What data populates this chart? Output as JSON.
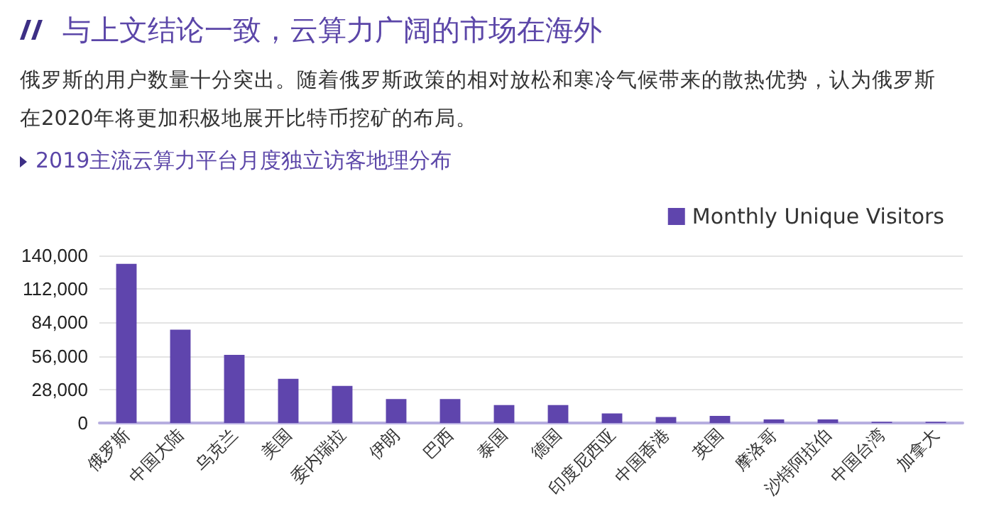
{
  "chart_data": {
    "type": "bar",
    "title": "2019主流云算力平台月度独立访客地理分布",
    "annotations": [
      "与上文结论一致，云算力广阔的市场在海外",
      "俄罗斯的用户数量十分突出。随着俄罗斯政策的相对放松和寒冷气候带来的散热优势，认为俄罗斯在2020年将更加积极地展开比特币挖矿的布局。"
    ],
    "categories": [
      "俄罗斯",
      "中国大陆",
      "乌克兰",
      "美国",
      "委内瑞拉",
      "伊朗",
      "巴西",
      "泰国",
      "德国",
      "印度尼西亚",
      "中国香港",
      "英国",
      "摩洛哥",
      "沙特阿拉伯",
      "中国台湾",
      "加拿大"
    ],
    "series": [
      {
        "name": "Monthly Unique Visitors",
        "color": "#5f45ad",
        "values": [
          133000,
          78000,
          57000,
          37000,
          31000,
          20000,
          20000,
          15000,
          15000,
          8000,
          5000,
          6000,
          3000,
          3000,
          1000,
          1000
        ]
      }
    ],
    "ylim": [
      0,
      140000
    ],
    "yticks": [
      {
        "value": 0,
        "label": "0"
      },
      {
        "value": 28000,
        "label": "28,000"
      },
      {
        "value": 56000,
        "label": "56,000"
      },
      {
        "value": 84000,
        "label": "84,000"
      },
      {
        "value": 112000,
        "label": "112,000"
      },
      {
        "value": 140000,
        "label": "140,000"
      }
    ],
    "grid": "y",
    "legend": "top right"
  }
}
